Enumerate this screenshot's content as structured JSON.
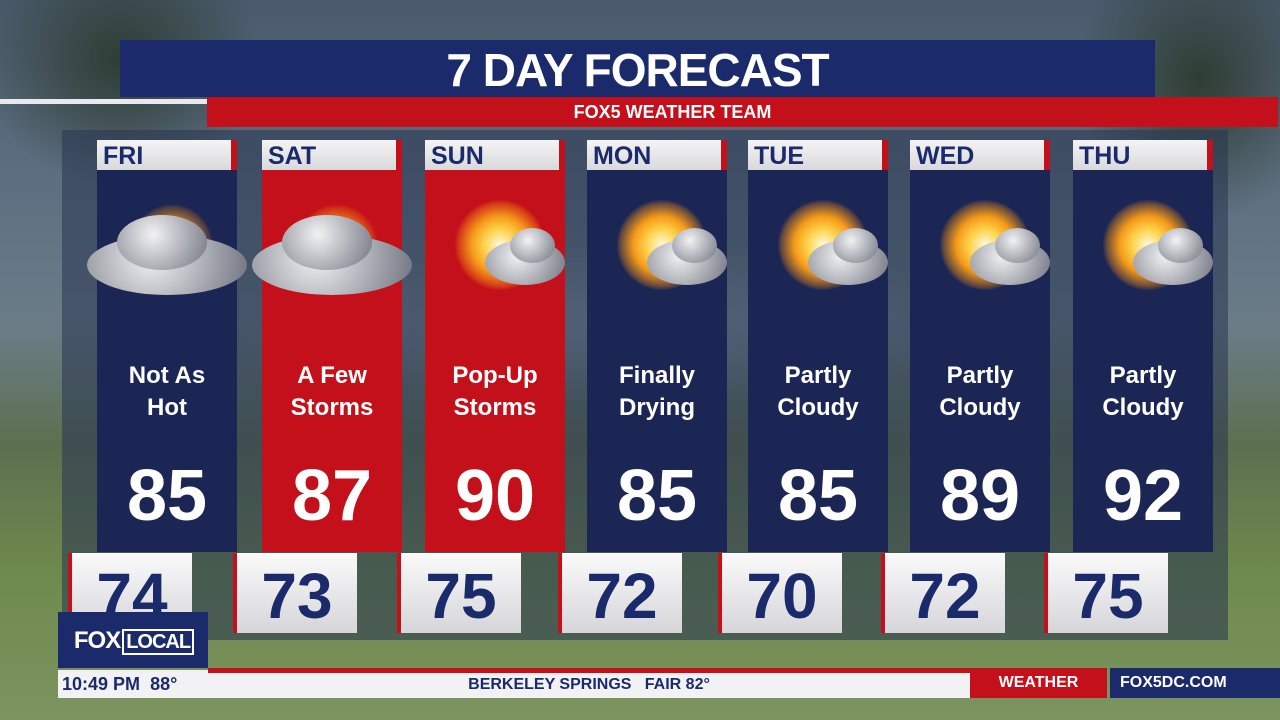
{
  "title": "7 DAY FORECAST",
  "subtitle": "FOX5 WEATHER TEAM",
  "days": [
    {
      "day": "FRI",
      "desc1": "Not As",
      "desc2": "Hot",
      "high": "85",
      "low": "74",
      "icon": "thunderstorm-partly-sunny-icon",
      "color": "#1c2654"
    },
    {
      "day": "SAT",
      "desc1": "A Few",
      "desc2": "Storms",
      "high": "87",
      "low": "73",
      "icon": "storm-cloud-icon",
      "color": "#c4101a"
    },
    {
      "day": "SUN",
      "desc1": "Pop-Up",
      "desc2": "Storms",
      "high": "90",
      "low": "75",
      "icon": "sun-cloud-icon",
      "color": "#c4101a"
    },
    {
      "day": "MON",
      "desc1": "Finally",
      "desc2": "Drying",
      "high": "85",
      "low": "72",
      "icon": "cloud-sun-icon",
      "color": "#1c2654"
    },
    {
      "day": "TUE",
      "desc1": "Partly",
      "desc2": "Cloudy",
      "high": "85",
      "low": "70",
      "icon": "partly-cloudy-icon",
      "color": "#1c2654"
    },
    {
      "day": "WED",
      "desc1": "Partly",
      "desc2": "Cloudy",
      "high": "89",
      "low": "72",
      "icon": "partly-cloudy-icon",
      "color": "#1c2654"
    },
    {
      "day": "THU",
      "desc1": "Partly",
      "desc2": "Cloudy",
      "high": "92",
      "low": "75",
      "icon": "partly-cloudy-icon",
      "color": "#1c2654"
    }
  ],
  "logo": {
    "fox": "FOX",
    "local": "LOCAL"
  },
  "ticker": {
    "time": "10:49 PM",
    "temp": "88°",
    "crawl": "BERKELEY SPRINGS   FAIR 82°",
    "section": "WEATHER",
    "site": "FOX5DC.COM"
  }
}
